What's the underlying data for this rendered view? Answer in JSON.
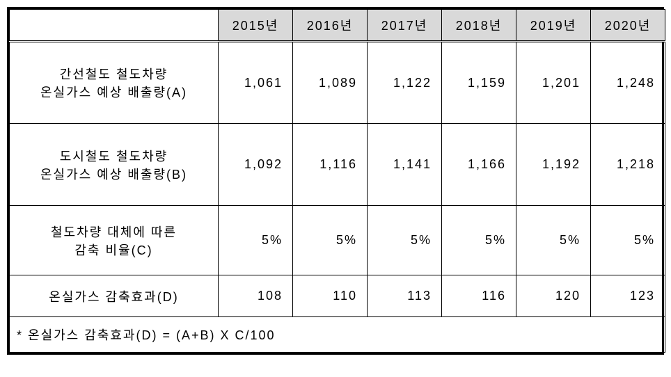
{
  "table": {
    "columns": [
      "",
      "2015년",
      "2016년",
      "2017년",
      "2018년",
      "2019년",
      "2020년"
    ],
    "column_widths": [
      "300px",
      "107px",
      "107px",
      "107px",
      "107px",
      "107px",
      "107px"
    ],
    "header_bg": "#d9d9d9",
    "border_color": "#000000",
    "outer_border_width": 3,
    "font_size": 18,
    "rows": [
      {
        "header": "간선철도 철도차량\n온실가스 예상 배출량(A)",
        "cells": [
          "1,061",
          "1,089",
          "1,122",
          "1,159",
          "1,201",
          "1,248"
        ],
        "height_class": "row-tall"
      },
      {
        "header": "도시철도 철도차량\n온실가스 예상 배출량(B)",
        "cells": [
          "1,092",
          "1,116",
          "1,141",
          "1,166",
          "1,192",
          "1,218"
        ],
        "height_class": "row-tall"
      },
      {
        "header": "철도차량 대체에 따른\n감축 비율(C)",
        "cells": [
          "5%",
          "5%",
          "5%",
          "5%",
          "5%",
          "5%"
        ],
        "height_class": "row-medium"
      },
      {
        "header": "온실가스 감축효과(D)",
        "cells": [
          "108",
          "110",
          "113",
          "116",
          "120",
          "123"
        ],
        "height_class": "row-short"
      }
    ],
    "footnote": "* 온실가스 감축효과(D) = (A+B) X C/100"
  }
}
